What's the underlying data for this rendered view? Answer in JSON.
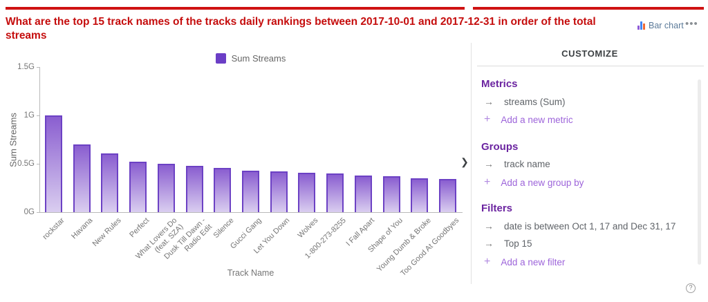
{
  "header": {
    "title": "What are the top 15 track names of the tracks daily rankings between 2017-10-01 and 2017-12-31 in order of the total streams",
    "title_color": "#c50d0d",
    "chart_type_label": "Bar chart",
    "menu_dots": "•••"
  },
  "icons": {
    "chevron_collapse": "❯",
    "row_arrow": "→",
    "add_plus": "+",
    "help_glyph": "?",
    "bar_chart_icon_colors": [
      "#8e5bd8",
      "#4285f4",
      "#f06a35"
    ]
  },
  "chart_data": {
    "type": "bar",
    "legend": "Sum Streams",
    "xlabel": "Track Name",
    "ylabel": "Sum Streams",
    "ylim": [
      0,
      1.5
    ],
    "unit": "G (billions of streams)",
    "yticks": [
      {
        "v": 0,
        "label": "0G"
      },
      {
        "v": 0.5,
        "label": "0.5G"
      },
      {
        "v": 1,
        "label": "1G"
      },
      {
        "v": 1.5,
        "label": "1.5G"
      }
    ],
    "categories": [
      "rockstar",
      "Havana",
      "New Rules",
      "Perfect",
      "What Lovers Do\n(feat. SZA)",
      "Dusk Till Dawn -\nRadio Edit",
      "Silence",
      "Gucci Gang",
      "Let You Down",
      "Wolves",
      "1-800-273-8255",
      "I Fall Apart",
      "Shape of You",
      "Young Dumb & Broke",
      "Too Good At Goodbyes"
    ],
    "values": [
      1.0,
      0.7,
      0.61,
      0.52,
      0.5,
      0.48,
      0.46,
      0.43,
      0.42,
      0.41,
      0.4,
      0.38,
      0.37,
      0.35,
      0.34
    ],
    "colors": {
      "bar_border": "#6c41c4",
      "bar_gradient_top": "#8a5ed0",
      "bar_gradient_bottom": "#dacef0",
      "legend_swatch": "#6b3ec6"
    }
  },
  "panel": {
    "title": "CUSTOMIZE",
    "sections": [
      {
        "title": "Metrics",
        "items": [
          "streams (Sum)"
        ],
        "add_label": "Add a new metric"
      },
      {
        "title": "Groups",
        "items": [
          "track name"
        ],
        "add_label": "Add a new group by"
      },
      {
        "title": "Filters",
        "items": [
          "date is between Oct 1, 17 and Dec 31, 17",
          "Top 15"
        ],
        "add_label": "Add a new filter"
      }
    ]
  }
}
